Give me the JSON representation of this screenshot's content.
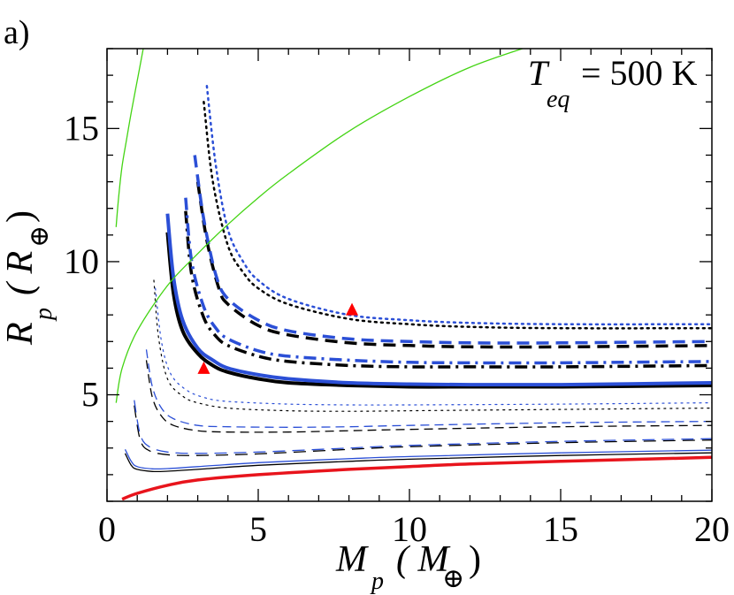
{
  "panel_label": "a)",
  "annotation": {
    "symbol": "T",
    "subscript": "eq",
    "value_text": "= 500 K"
  },
  "axes": {
    "x": {
      "symbol": "M",
      "subscript": "p",
      "unit_open": "( M",
      "unit_sub": "⊕",
      "unit_close": ")"
    },
    "y": {
      "symbol": "R",
      "subscript": "p",
      "unit_open": "( R",
      "unit_sub": "⊕",
      "unit_close": ")"
    }
  },
  "chart_data": {
    "type": "line",
    "title": "",
    "xlabel": "M_p ( M_⊕ )",
    "ylabel": "R_p ( R_⊕ )",
    "xlim": [
      0,
      20
    ],
    "ylim": [
      1,
      18
    ],
    "xticks": [
      0,
      5,
      10,
      15,
      20
    ],
    "xtick_labels": [
      "0",
      "5",
      "10",
      "15",
      "20"
    ],
    "yticks": [
      5,
      10,
      15
    ],
    "ytick_labels": [
      "5",
      "10",
      "15"
    ],
    "colors": {
      "black": "#000000",
      "blue": "#2b4fd6",
      "red": "#e8141c",
      "green": "#44d414",
      "marker": "#ff0000"
    },
    "series": [
      {
        "name": "black thick solid",
        "color": "black",
        "style": "solid",
        "width": 4,
        "x": [
          2.0,
          2.2,
          2.5,
          3.0,
          3.5,
          4.0,
          5.0,
          6.0,
          8.0,
          10.0,
          12.0,
          15.0,
          20.0
        ],
        "y": [
          11.1,
          8.8,
          7.4,
          6.55,
          6.1,
          5.85,
          5.6,
          5.45,
          5.35,
          5.3,
          5.3,
          5.3,
          5.35
        ]
      },
      {
        "name": "blue thick solid",
        "color": "blue",
        "style": "solid",
        "width": 4,
        "x": [
          2.0,
          2.2,
          2.5,
          3.0,
          3.5,
          4.0,
          5.0,
          6.0,
          8.0,
          10.0,
          12.0,
          15.0,
          20.0
        ],
        "y": [
          11.8,
          9.4,
          7.8,
          6.75,
          6.3,
          6.0,
          5.75,
          5.6,
          5.45,
          5.4,
          5.38,
          5.38,
          5.45
        ]
      },
      {
        "name": "black thick dash-dot",
        "color": "black",
        "style": "dashdot",
        "width": 3.5,
        "x": [
          2.6,
          2.8,
          3.2,
          3.6,
          4.0,
          5.0,
          6.0,
          8.0,
          10.0,
          12.0,
          15.0,
          20.0
        ],
        "y": [
          11.9,
          9.5,
          7.9,
          7.2,
          6.85,
          6.45,
          6.25,
          6.1,
          6.05,
          6.05,
          6.05,
          6.1
        ]
      },
      {
        "name": "blue thick dash-dot",
        "color": "blue",
        "style": "dashdot",
        "width": 3.5,
        "x": [
          2.6,
          2.8,
          3.2,
          3.6,
          4.0,
          5.0,
          6.0,
          8.0,
          10.0,
          12.0,
          15.0,
          20.0
        ],
        "y": [
          12.4,
          10.0,
          8.3,
          7.5,
          7.1,
          6.65,
          6.45,
          6.3,
          6.22,
          6.2,
          6.2,
          6.25
        ]
      },
      {
        "name": "black thick dashed",
        "color": "black",
        "style": "dashed",
        "width": 3.5,
        "x": [
          3.0,
          3.3,
          3.7,
          4.0,
          5.0,
          6.0,
          8.0,
          10.0,
          12.0,
          15.0,
          20.0
        ],
        "y": [
          13.0,
          10.8,
          9.0,
          8.4,
          7.6,
          7.25,
          6.95,
          6.85,
          6.8,
          6.8,
          6.85
        ]
      },
      {
        "name": "blue thick dashed",
        "color": "blue",
        "style": "dashed",
        "width": 3.5,
        "x": [
          2.9,
          3.2,
          3.6,
          4.0,
          5.0,
          6.0,
          8.0,
          10.0,
          12.0,
          15.0,
          20.0
        ],
        "y": [
          14.0,
          11.6,
          9.5,
          8.6,
          7.8,
          7.4,
          7.1,
          7.0,
          6.95,
          6.95,
          7.0
        ]
      },
      {
        "name": "black thick dotted",
        "color": "black",
        "style": "dotted",
        "width": 2.5,
        "x": [
          3.2,
          3.5,
          4.0,
          4.5,
          5.0,
          6.0,
          8.0,
          10.0,
          12.0,
          15.0,
          20.0
        ],
        "y": [
          16.0,
          13.0,
          10.6,
          9.6,
          9.0,
          8.4,
          7.85,
          7.65,
          7.55,
          7.5,
          7.5
        ]
      },
      {
        "name": "blue thick dotted",
        "color": "blue",
        "style": "dotted",
        "width": 2.5,
        "x": [
          3.3,
          3.6,
          4.0,
          4.5,
          5.0,
          6.0,
          8.0,
          10.0,
          12.0,
          15.0,
          20.0
        ],
        "y": [
          16.6,
          13.6,
          11.2,
          10.0,
          9.3,
          8.6,
          8.0,
          7.8,
          7.7,
          7.65,
          7.65
        ]
      },
      {
        "name": "black thin solid",
        "color": "black",
        "style": "solid",
        "width": 1.3,
        "x": [
          0.6,
          0.8,
          1.0,
          1.5,
          2.0,
          3.0,
          5.0,
          8.0,
          10.0,
          15.0,
          20.0
        ],
        "y": [
          2.8,
          2.35,
          2.2,
          2.12,
          2.13,
          2.2,
          2.35,
          2.5,
          2.58,
          2.72,
          2.82
        ]
      },
      {
        "name": "blue thin solid",
        "color": "blue",
        "style": "solid",
        "width": 1.3,
        "x": [
          0.6,
          0.8,
          1.0,
          1.5,
          2.0,
          3.0,
          5.0,
          8.0,
          10.0,
          15.0,
          20.0
        ],
        "y": [
          2.95,
          2.5,
          2.3,
          2.22,
          2.23,
          2.3,
          2.45,
          2.6,
          2.68,
          2.82,
          2.92
        ]
      },
      {
        "name": "black thin dashed",
        "color": "black",
        "style": "dashed",
        "width": 1.3,
        "x": [
          0.9,
          1.1,
          1.4,
          2.0,
          3.0,
          5.0,
          8.0,
          10.0,
          15.0,
          20.0
        ],
        "y": [
          4.6,
          3.3,
          2.9,
          2.75,
          2.72,
          2.78,
          2.95,
          3.05,
          3.2,
          3.3
        ]
      },
      {
        "name": "blue thin dashed",
        "color": "blue",
        "style": "dashed",
        "width": 1.3,
        "x": [
          0.9,
          1.1,
          1.4,
          2.0,
          3.0,
          5.0,
          8.0,
          10.0,
          15.0,
          20.0
        ],
        "y": [
          4.8,
          3.5,
          3.05,
          2.85,
          2.8,
          2.85,
          3.0,
          3.1,
          3.25,
          3.35
        ]
      },
      {
        "name": "black thin long-dash",
        "color": "black",
        "style": "longdash",
        "width": 1.3,
        "x": [
          1.3,
          1.5,
          1.8,
          2.2,
          3.0,
          4.0,
          6.0,
          8.0,
          10.0,
          15.0,
          20.0
        ],
        "y": [
          6.3,
          4.9,
          4.2,
          3.85,
          3.65,
          3.6,
          3.6,
          3.65,
          3.7,
          3.8,
          3.85
        ]
      },
      {
        "name": "blue thin long-dash",
        "color": "blue",
        "style": "longdash",
        "width": 1.3,
        "x": [
          1.3,
          1.5,
          1.8,
          2.2,
          3.0,
          4.0,
          6.0,
          8.0,
          10.0,
          15.0,
          20.0
        ],
        "y": [
          6.7,
          5.3,
          4.5,
          4.1,
          3.85,
          3.8,
          3.78,
          3.8,
          3.85,
          3.95,
          4.0
        ]
      },
      {
        "name": "black thin dotted",
        "color": "black",
        "style": "dotted",
        "width": 1.2,
        "x": [
          1.55,
          1.7,
          2.0,
          2.5,
          3.0,
          4.0,
          6.0,
          8.0,
          10.0,
          15.0,
          20.0
        ],
        "y": [
          9.3,
          7.2,
          5.6,
          4.95,
          4.7,
          4.5,
          4.4,
          4.38,
          4.4,
          4.45,
          4.5
        ]
      },
      {
        "name": "blue thin dotted",
        "color": "blue",
        "style": "dotted",
        "width": 1.2,
        "x": [
          1.6,
          1.8,
          2.1,
          2.6,
          3.2,
          4.0,
          6.0,
          8.0,
          10.0,
          15.0,
          20.0
        ],
        "y": [
          9.0,
          7.0,
          5.8,
          5.2,
          4.9,
          4.75,
          4.65,
          4.62,
          4.62,
          4.65,
          4.7
        ]
      },
      {
        "name": "red thick solid",
        "color": "red",
        "style": "solid",
        "width": 3.5,
        "x": [
          0.5,
          1.0,
          2.0,
          3.0,
          5.0,
          8.0,
          10.0,
          12.0,
          15.0,
          20.0
        ],
        "y": [
          1.08,
          1.3,
          1.6,
          1.8,
          2.0,
          2.2,
          2.3,
          2.4,
          2.5,
          2.65
        ]
      },
      {
        "name": "green left",
        "color": "green",
        "style": "solid",
        "width": 1.3,
        "x": [
          0.3,
          0.4,
          0.5,
          0.65,
          0.8,
          1.0,
          1.2
        ],
        "y": [
          11.3,
          12.6,
          13.6,
          14.6,
          15.6,
          16.8,
          18.0
        ]
      },
      {
        "name": "green right",
        "color": "green",
        "style": "solid",
        "width": 1.3,
        "x": [
          0.3,
          0.5,
          1.0,
          2.0,
          3.0,
          4.0,
          5.0,
          6.0,
          8.0,
          10.0,
          12.0,
          14.0
        ],
        "y": [
          4.7,
          6.0,
          7.4,
          9.1,
          10.3,
          11.4,
          12.4,
          13.3,
          14.9,
          16.2,
          17.3,
          18.1
        ]
      }
    ],
    "markers": [
      {
        "name": "planet-marker-1",
        "shape": "triangle",
        "x": 3.2,
        "y": 6.0
      },
      {
        "name": "planet-marker-2",
        "shape": "triangle",
        "x": 8.1,
        "y": 8.2
      }
    ]
  }
}
